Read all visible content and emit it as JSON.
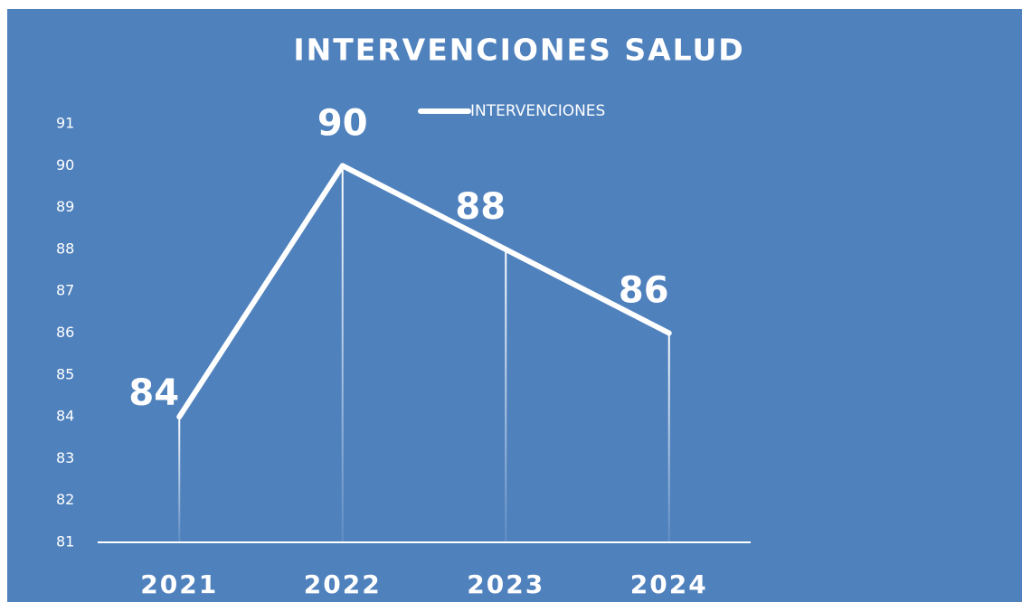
{
  "chart_data": {
    "type": "line",
    "title": "INTERVENCIONES SALUD",
    "categories": [
      "2021",
      "2022",
      "2023",
      "2024"
    ],
    "series": [
      {
        "name": "INTERVENCIONES",
        "color": "#ffffff",
        "values": [
          84,
          90,
          88,
          86
        ]
      }
    ],
    "ylim": [
      81,
      91
    ],
    "yticks": [
      81,
      82,
      83,
      84,
      85,
      86,
      87,
      88,
      89,
      90,
      91
    ],
    "legend": "top",
    "background": "#4f81bd"
  }
}
